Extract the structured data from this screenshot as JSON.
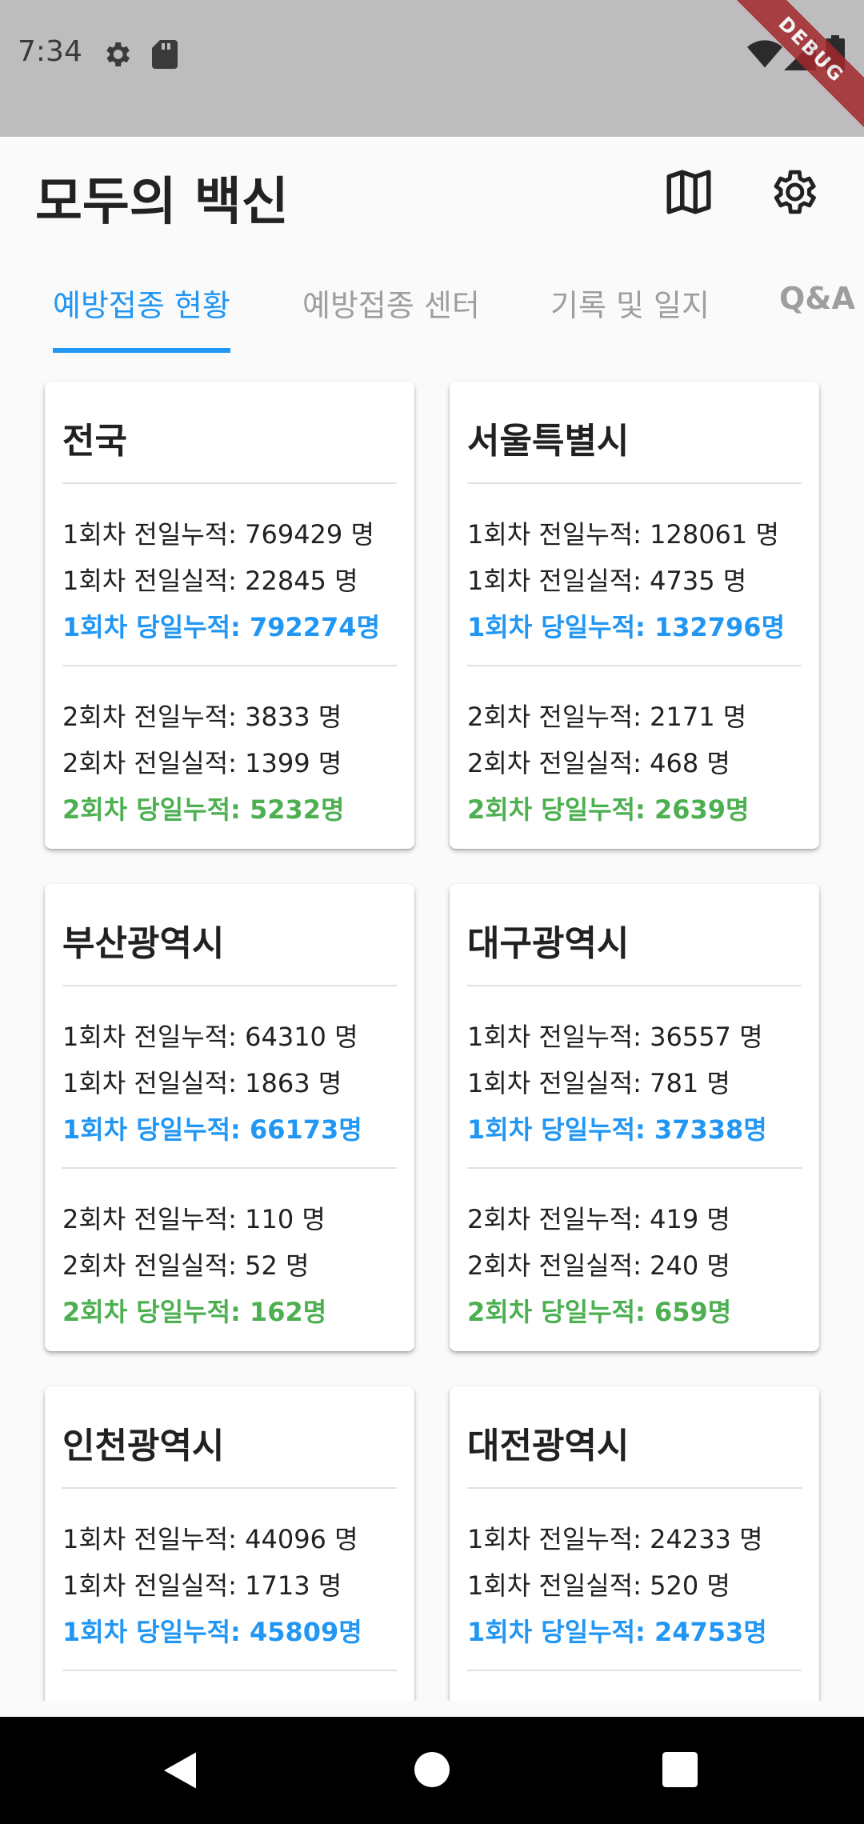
{
  "status_bar": {
    "time": "7:34",
    "debug_label": "DEBUG"
  },
  "app_bar": {
    "title": "모두의 백신",
    "map_icon": "map-icon",
    "settings_icon": "gear-icon"
  },
  "tabs": [
    {
      "label": "예방접종 현황",
      "active": true
    },
    {
      "label": "예방접종 센터",
      "active": false
    },
    {
      "label": "기록 및 일지",
      "active": false
    },
    {
      "label": "Q&A",
      "active": false
    }
  ],
  "cards": [
    {
      "region": "전국",
      "d1_prev_total": "1회차 전일누적: 769429 명",
      "d1_prev_day": "1회차 전일실적: 22845 명",
      "d1_today_total": "1회차 당일누적: 792274명",
      "d2_prev_total": "2회차 전일누적: 3833 명",
      "d2_prev_day": "2회차 전일실적: 1399 명",
      "d2_today_total": "2회차 당일누적: 5232명"
    },
    {
      "region": "서울특별시",
      "d1_prev_total": "1회차 전일누적: 128061 명",
      "d1_prev_day": "1회차 전일실적: 4735 명",
      "d1_today_total": "1회차 당일누적: 132796명",
      "d2_prev_total": "2회차 전일누적: 2171 명",
      "d2_prev_day": "2회차 전일실적: 468 명",
      "d2_today_total": "2회차 당일누적: 2639명"
    },
    {
      "region": "부산광역시",
      "d1_prev_total": "1회차 전일누적: 64310 명",
      "d1_prev_day": "1회차 전일실적: 1863 명",
      "d1_today_total": "1회차 당일누적: 66173명",
      "d2_prev_total": "2회차 전일누적: 110 명",
      "d2_prev_day": "2회차 전일실적: 52 명",
      "d2_today_total": "2회차 당일누적: 162명"
    },
    {
      "region": "대구광역시",
      "d1_prev_total": "1회차 전일누적: 36557 명",
      "d1_prev_day": "1회차 전일실적: 781 명",
      "d1_today_total": "1회차 당일누적: 37338명",
      "d2_prev_total": "2회차 전일누적: 419 명",
      "d2_prev_day": "2회차 전일실적: 240 명",
      "d2_today_total": "2회차 당일누적: 659명"
    },
    {
      "region": "인천광역시",
      "d1_prev_total": "1회차 전일누적: 44096 명",
      "d1_prev_day": "1회차 전일실적: 1713 명",
      "d1_today_total": "1회차 당일누적: 45809명",
      "d2_prev_total": "",
      "d2_prev_day": "",
      "d2_today_total": ""
    },
    {
      "region": "대전광역시",
      "d1_prev_total": "1회차 전일누적: 24233 명",
      "d1_prev_day": "1회차 전일실적: 520 명",
      "d1_today_total": "1회차 당일누적: 24753명",
      "d2_prev_total": "",
      "d2_prev_day": "",
      "d2_today_total": ""
    }
  ],
  "colors": {
    "accent": "#2196f3",
    "dose2": "#4caf50",
    "status_bar": "#bdbdbd",
    "debug_ribbon": "#a3282d"
  }
}
